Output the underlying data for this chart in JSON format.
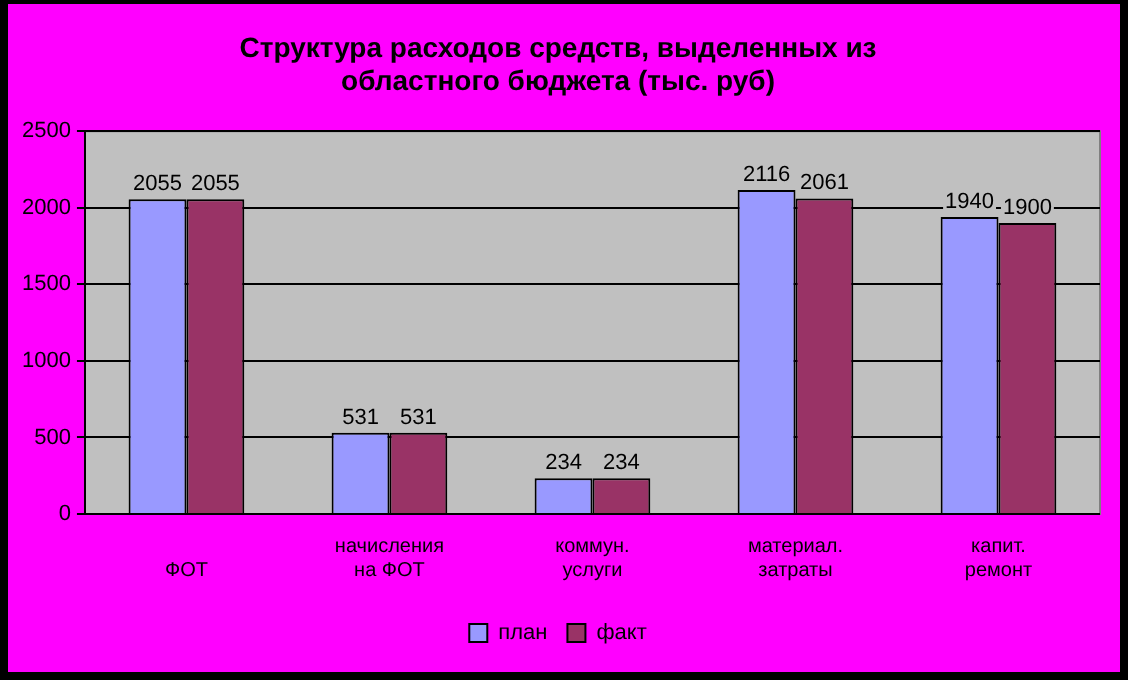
{
  "chart_data": {
    "type": "bar",
    "title": "Структура расходов средств, выделенных из\nобластного бюджета (тыс. руб)",
    "categories": [
      "\nФОТ",
      "начисления\nна ФОТ",
      "коммун.\nуслуги",
      "материал.\nзатраты",
      "капит.\nремонт"
    ],
    "series": [
      {
        "name": "план",
        "color": "#9999ff",
        "values": [
          2055,
          531,
          234,
          2116,
          1940
        ]
      },
      {
        "name": "факт",
        "color": "#993366",
        "values": [
          2055,
          531,
          234,
          2061,
          1900
        ]
      }
    ],
    "ylim": [
      0,
      2500
    ],
    "yticks": [
      0,
      500,
      1000,
      1500,
      2000,
      2500
    ],
    "grid": "y",
    "legend": "bottom",
    "data_labels": true
  }
}
